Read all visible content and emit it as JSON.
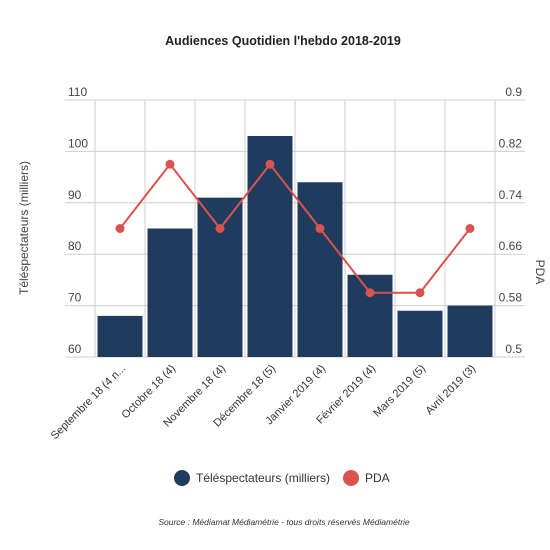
{
  "chart_data": {
    "type": "bar",
    "title": "Audiences Quotidien l'hebdo 2018-2019",
    "categories": [
      "Septembre 18 (4 n...",
      "Octobre 18 (4)",
      "Novembre 18 (4)",
      "Décembre 18 (5)",
      "Janvier 2019 (4)",
      "Février 2019 (4)",
      "Mars 2019 (5)",
      "Avril 2019 (3)"
    ],
    "series": [
      {
        "name": "Téléspectateurs (milliers)",
        "type": "bar",
        "axis": "left",
        "color": "#1f3b5e",
        "values": [
          68,
          85,
          91,
          103,
          94,
          76,
          69,
          70
        ]
      },
      {
        "name": "PDA",
        "type": "line",
        "axis": "right",
        "color": "#d9534f",
        "values": [
          0.7,
          0.8,
          0.7,
          0.8,
          0.7,
          0.6,
          0.6,
          0.7
        ]
      }
    ],
    "ylabel": "Téléspectateurs (milliers)",
    "y2label": "PDA",
    "ylim": [
      60,
      110
    ],
    "y2lim": [
      0.5,
      0.9
    ],
    "yticks": [
      "60",
      "70",
      "80",
      "90",
      "100",
      "110"
    ],
    "y2ticks": [
      "0.5",
      "0.58",
      "0.66",
      "0.74",
      "0.82",
      "0.9"
    ],
    "grid": true,
    "legend_position": "bottom"
  },
  "source": "Source : Médiamat Médiamétrie - tous droits réservés Médiamétrie"
}
